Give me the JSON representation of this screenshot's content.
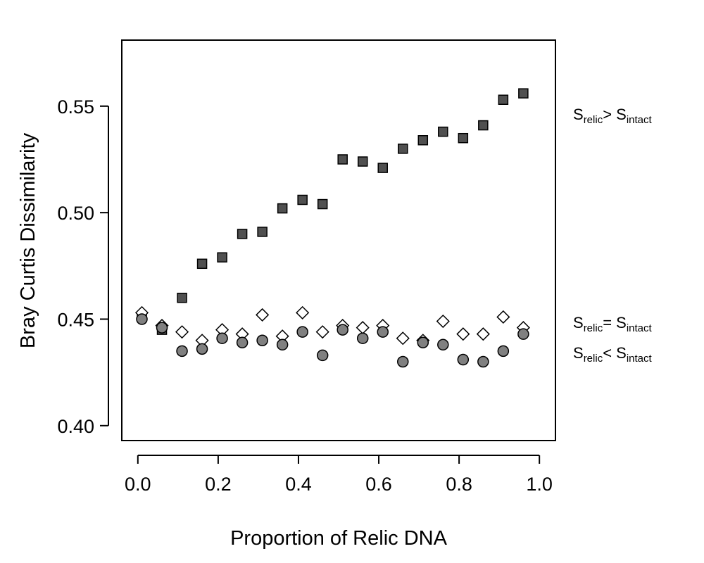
{
  "chart_data": {
    "type": "scatter",
    "xlabel": "Proportion of Relic DNA",
    "ylabel": "Bray Curtis Dissimilarity",
    "xlim": [
      -0.04,
      1.04
    ],
    "ylim": [
      0.393,
      0.581
    ],
    "xticks": [
      "0.0",
      "0.2",
      "0.4",
      "0.6",
      "0.8",
      "1.0"
    ],
    "yticks": [
      "0.40",
      "0.45",
      "0.50",
      "0.55"
    ],
    "grid": false,
    "legend": "right, text labels beside each series",
    "x": [
      0.01,
      0.06,
      0.11,
      0.16,
      0.21,
      0.26,
      0.31,
      0.36,
      0.41,
      0.46,
      0.51,
      0.56,
      0.61,
      0.66,
      0.71,
      0.76,
      0.81,
      0.86,
      0.91,
      0.96
    ],
    "series": [
      {
        "marker": "square",
        "label": {
          "s1": "S",
          "sub1": "relic",
          "rel": "> S",
          "sub2": "intact"
        },
        "fill": "#505050",
        "values": [
          0.451,
          0.445,
          0.46,
          0.476,
          0.479,
          0.49,
          0.491,
          0.502,
          0.506,
          0.504,
          0.525,
          0.524,
          0.521,
          0.53,
          0.534,
          0.538,
          0.535,
          0.541,
          0.553,
          0.556
        ]
      },
      {
        "marker": "diamond",
        "label": {
          "s1": "S",
          "sub1": "relic",
          "rel": "= S",
          "sub2": "intact"
        },
        "fill": "#ffffff",
        "values": [
          0.453,
          0.447,
          0.444,
          0.44,
          0.445,
          0.443,
          0.452,
          0.442,
          0.453,
          0.444,
          0.447,
          0.446,
          0.447,
          0.441,
          0.44,
          0.449,
          0.443,
          0.443,
          0.451,
          0.446
        ]
      },
      {
        "marker": "circle",
        "label": {
          "s1": "S",
          "sub1": "relic",
          "rel": "< S",
          "sub2": "intact"
        },
        "fill": "#808080",
        "values": [
          0.45,
          0.446,
          0.435,
          0.436,
          0.441,
          0.439,
          0.44,
          0.438,
          0.444,
          0.433,
          0.445,
          0.441,
          0.444,
          0.43,
          0.439,
          0.438,
          0.431,
          0.43,
          0.435,
          0.443
        ]
      }
    ]
  }
}
